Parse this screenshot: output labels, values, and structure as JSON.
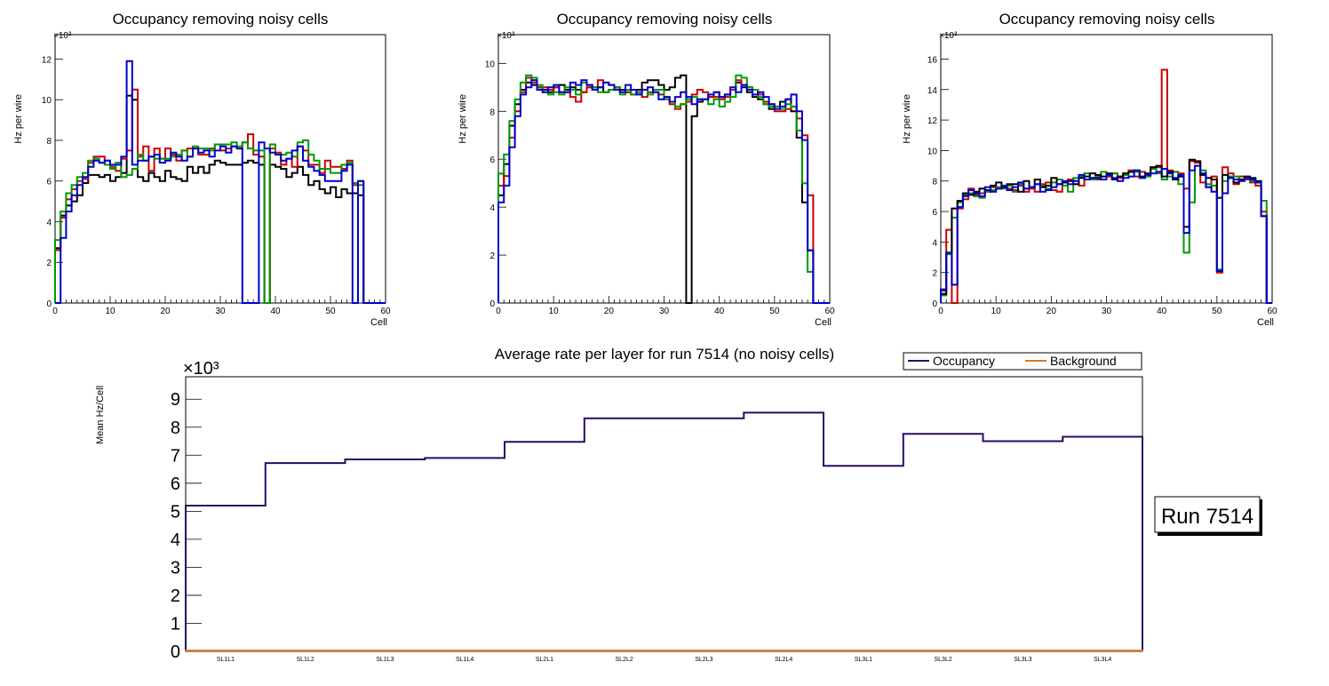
{
  "colors": {
    "red": "#cc0000",
    "green": "#009900",
    "black": "#000000",
    "blue": "#0000cc",
    "occupancy": "#2a0a66",
    "background": "#dd7722"
  },
  "chart_data": [
    {
      "type": "line",
      "title": "Occupancy removing noisy cells",
      "xlabel": "Cell",
      "ylabel": "Hz per wire",
      "exponent": "×10³",
      "xlim": [
        0,
        60
      ],
      "ylim": [
        0,
        13.2
      ],
      "xticks": [
        0,
        10,
        20,
        30,
        40,
        50,
        60
      ],
      "yticks": [
        0,
        2,
        4,
        6,
        8,
        10,
        12
      ],
      "series": [
        {
          "name": "black",
          "color": "black",
          "values": [
            2.7,
            4.3,
            4.8,
            5.0,
            5.3,
            5.9,
            6.3,
            6.3,
            6.2,
            6.3,
            6.0,
            6.2,
            6.4,
            10.2,
            10.0,
            6.2,
            6.0,
            6.4,
            6.2,
            6.0,
            6.5,
            6.2,
            6.1,
            6.0,
            6.7,
            6.4,
            6.7,
            6.4,
            6.8,
            7.0,
            6.9,
            6.8,
            6.8,
            6.8,
            6.9,
            7.0,
            6.9,
            6.8,
            0,
            6.8,
            6.7,
            6.6,
            6.2,
            6.4,
            6.7,
            6.3,
            5.8,
            6.0,
            5.6,
            5.4,
            5.7,
            5.2,
            5.6,
            5.4,
            5.4,
            5.3,
            0,
            0,
            0,
            0
          ]
        },
        {
          "name": "red",
          "color": "red",
          "values": [
            2.6,
            4.2,
            5.1,
            5.6,
            6.0,
            6.1,
            6.9,
            7.2,
            7.2,
            7.0,
            6.7,
            6.5,
            7.1,
            7.5,
            10.5,
            7.2,
            7.7,
            6.5,
            7.6,
            7.1,
            7.6,
            7.3,
            7.0,
            7.5,
            7.6,
            7.6,
            7.3,
            7.3,
            7.6,
            7.8,
            7.5,
            7.6,
            7.7,
            7.6,
            7.9,
            8.3,
            7.3,
            7.2,
            0,
            7.6,
            7.4,
            6.8,
            7.1,
            6.7,
            7.7,
            7.5,
            6.8,
            6.8,
            6.4,
            7.0,
            6.7,
            6.7,
            6.6,
            7.0,
            5.8,
            6.0,
            0,
            0,
            0,
            0
          ]
        },
        {
          "name": "green",
          "color": "green",
          "values": [
            3.1,
            4.5,
            5.4,
            5.8,
            6.2,
            6.4,
            7.0,
            7.1,
            6.9,
            6.8,
            6.6,
            6.9,
            6.2,
            6.3,
            6.6,
            7.3,
            7.0,
            7.2,
            7.1,
            7.1,
            7.1,
            7.2,
            7.3,
            7.5,
            7.2,
            7.7,
            7.6,
            7.6,
            7.5,
            7.8,
            7.8,
            7.8,
            7.9,
            7.7,
            7.9,
            7.6,
            7.5,
            7.5,
            0,
            7.8,
            7.3,
            7.3,
            7.4,
            7.2,
            7.9,
            8.0,
            7.3,
            7.0,
            6.6,
            6.6,
            6.4,
            6.4,
            6.8,
            6.9,
            5.9,
            5.8,
            0,
            0,
            0,
            0
          ]
        },
        {
          "name": "blue",
          "color": "blue",
          "values": [
            0,
            3.2,
            4.5,
            5.3,
            5.8,
            6.2,
            6.7,
            7.0,
            6.9,
            7.0,
            6.8,
            6.8,
            7.2,
            11.9,
            6.8,
            7.0,
            7.0,
            7.2,
            7.3,
            6.9,
            7.0,
            7.4,
            7.2,
            7.0,
            7.2,
            7.6,
            7.4,
            7.5,
            7.2,
            7.5,
            7.7,
            7.4,
            7.7,
            7.6,
            0,
            0,
            0,
            7.9,
            7.6,
            7.4,
            7.3,
            7.0,
            7.1,
            7.5,
            7.7,
            7.0,
            6.7,
            6.5,
            6.3,
            6.0,
            6.0,
            6.0,
            6.5,
            6.8,
            0,
            6.0,
            0,
            0,
            0,
            0
          ]
        }
      ]
    },
    {
      "type": "line",
      "title": "Occupancy removing noisy cells",
      "xlabel": "Cell",
      "ylabel": "Hz per wire",
      "exponent": "×10³",
      "xlim": [
        0,
        60
      ],
      "ylim": [
        0,
        11.2
      ],
      "xticks": [
        0,
        10,
        20,
        30,
        40,
        50,
        60
      ],
      "yticks": [
        0,
        2,
        4,
        6,
        8,
        10
      ],
      "series": [
        {
          "name": "black",
          "color": "black",
          "values": [
            4.5,
            5.8,
            7.4,
            8.3,
            8.9,
            9.2,
            9.1,
            9.0,
            8.9,
            8.8,
            9.0,
            9.1,
            8.9,
            9.0,
            8.9,
            8.8,
            9.0,
            9.0,
            9.0,
            8.8,
            8.9,
            9.0,
            8.9,
            8.8,
            8.9,
            8.9,
            9.2,
            9.3,
            9.3,
            9.1,
            8.9,
            9.0,
            9.4,
            9.5,
            0,
            7.8,
            8.4,
            8.5,
            8.6,
            8.8,
            8.6,
            8.7,
            8.9,
            9.2,
            9.0,
            8.8,
            8.6,
            8.5,
            8.3,
            8.1,
            8.2,
            8.4,
            8.5,
            8.0,
            6.9,
            4.2,
            2.2,
            0,
            0,
            0
          ]
        },
        {
          "name": "red",
          "color": "red",
          "values": [
            4.9,
            5.3,
            6.9,
            8.0,
            8.8,
            9.4,
            9.2,
            9.0,
            9.0,
            8.9,
            9.0,
            8.8,
            8.8,
            8.6,
            8.4,
            8.8,
            9.0,
            8.9,
            9.3,
            9.2,
            9.1,
            9.0,
            8.8,
            8.8,
            8.7,
            8.8,
            8.6,
            8.8,
            8.8,
            8.7,
            8.6,
            8.3,
            8.1,
            8.3,
            8.4,
            8.7,
            8.9,
            8.8,
            8.6,
            8.6,
            8.5,
            8.6,
            8.9,
            9.3,
            9.1,
            9.0,
            8.9,
            8.7,
            8.4,
            8.3,
            8.0,
            8.0,
            8.1,
            8.2,
            7.7,
            7.0,
            4.5,
            0,
            0,
            0
          ]
        },
        {
          "name": "green",
          "color": "green",
          "values": [
            5.4,
            6.2,
            7.6,
            8.5,
            9.2,
            9.5,
            9.4,
            9.1,
            8.8,
            8.7,
            8.8,
            8.7,
            9.0,
            8.9,
            8.7,
            9.2,
            9.1,
            9.0,
            8.8,
            8.8,
            8.9,
            9.0,
            8.7,
            8.9,
            8.7,
            8.8,
            8.9,
            8.7,
            8.9,
            8.9,
            8.5,
            8.4,
            8.2,
            8.3,
            8.5,
            8.6,
            8.5,
            8.5,
            8.3,
            8.5,
            8.2,
            8.4,
            8.6,
            9.5,
            9.4,
            9.0,
            8.9,
            8.6,
            8.3,
            8.2,
            8.2,
            8.1,
            8.3,
            8.2,
            7.2,
            5.0,
            1.3,
            0,
            0,
            0
          ]
        },
        {
          "name": "blue",
          "color": "blue",
          "values": [
            4.2,
            4.9,
            6.5,
            7.8,
            8.7,
            9.0,
            9.3,
            8.9,
            8.8,
            9.0,
            9.1,
            8.8,
            8.8,
            9.2,
            9.1,
            9.3,
            9.1,
            8.9,
            9.0,
            9.2,
            9.1,
            8.9,
            8.8,
            9.1,
            8.9,
            8.7,
            8.9,
            9.0,
            8.8,
            8.5,
            8.6,
            8.4,
            8.6,
            8.8,
            8.6,
            8.3,
            8.5,
            8.5,
            8.7,
            8.8,
            8.6,
            8.7,
            9.0,
            8.8,
            9.1,
            8.9,
            8.7,
            8.8,
            8.6,
            8.3,
            8.1,
            8.2,
            8.5,
            8.7,
            8.0,
            6.8,
            2.2,
            0,
            0,
            0
          ]
        }
      ]
    },
    {
      "type": "line",
      "title": "Occupancy removing noisy cells",
      "xlabel": "Cell",
      "ylabel": "Hz per wire",
      "exponent": "×10³",
      "xlim": [
        0,
        60
      ],
      "ylim": [
        0,
        17.6
      ],
      "xticks": [
        0,
        10,
        20,
        30,
        40,
        50,
        60
      ],
      "yticks": [
        0,
        2,
        4,
        6,
        8,
        10,
        12,
        14,
        16
      ],
      "series": [
        {
          "name": "red",
          "color": "red",
          "values": [
            0.8,
            4.8,
            0,
            6.2,
            6.8,
            7.5,
            7.1,
            7.2,
            7.3,
            7.6,
            7.5,
            7.6,
            7.5,
            7.4,
            7.7,
            7.3,
            7.5,
            7.3,
            7.8,
            7.9,
            7.4,
            7.3,
            7.9,
            8.1,
            8.0,
            7.7,
            8.1,
            8.2,
            8.1,
            8.1,
            8.3,
            8.5,
            8.2,
            8.5,
            8.7,
            8.3,
            8.6,
            8.4,
            8.9,
            8.9,
            15.3,
            8.7,
            8.6,
            8.5,
            7.5,
            9.3,
            9.2,
            7.9,
            7.6,
            8.3,
            2.0,
            8.9,
            8.5,
            7.8,
            8.3,
            8.1,
            7.9,
            7.7,
            6.0,
            0
          ]
        },
        {
          "name": "green",
          "color": "green",
          "values": [
            0.5,
            3.2,
            5.6,
            6.6,
            7.1,
            7.2,
            7.0,
            6.9,
            7.3,
            7.4,
            7.6,
            7.5,
            7.7,
            7.3,
            7.8,
            7.5,
            7.6,
            7.8,
            7.7,
            7.5,
            7.9,
            8.1,
            7.7,
            7.3,
            8.2,
            8.3,
            8.5,
            8.1,
            8.3,
            8.6,
            8.5,
            8.5,
            8.3,
            8.4,
            8.6,
            8.6,
            8.2,
            8.3,
            8.8,
            8.5,
            8.1,
            8.3,
            8.6,
            7.8,
            3.3,
            6.6,
            9.0,
            8.7,
            7.8,
            7.7,
            2.2,
            8.0,
            8.3,
            8.3,
            8.1,
            8.2,
            8.0,
            7.9,
            6.7,
            0
          ]
        },
        {
          "name": "black",
          "color": "black",
          "values": [
            0.6,
            3.3,
            6.2,
            6.7,
            7.2,
            7.1,
            7.3,
            7.5,
            7.4,
            7.7,
            7.9,
            7.6,
            7.8,
            7.8,
            7.3,
            8.0,
            7.6,
            8.1,
            7.6,
            7.7,
            8.2,
            7.8,
            7.9,
            8.0,
            7.8,
            8.2,
            8.3,
            8.5,
            8.4,
            8.3,
            8.5,
            8.1,
            8.3,
            8.5,
            8.6,
            8.7,
            8.3,
            8.5,
            8.9,
            9.0,
            8.3,
            8.6,
            8.1,
            8.3,
            5.0,
            9.4,
            9.3,
            8.4,
            8.2,
            8.1,
            6.9,
            8.4,
            8.2,
            7.9,
            8.1,
            8.3,
            8.2,
            8.0,
            5.7,
            0
          ]
        },
        {
          "name": "blue",
          "color": "blue",
          "values": [
            0.9,
            3.3,
            1.2,
            6.3,
            7.0,
            7.4,
            7.2,
            7.0,
            7.6,
            7.3,
            7.5,
            7.7,
            7.4,
            7.6,
            7.9,
            7.5,
            7.6,
            7.8,
            7.3,
            7.4,
            7.6,
            7.8,
            8.0,
            7.8,
            8.0,
            8.4,
            8.1,
            8.2,
            8.2,
            8.1,
            8.4,
            8.2,
            8.0,
            8.2,
            8.3,
            8.7,
            8.2,
            8.4,
            8.5,
            8.6,
            8.8,
            8.5,
            8.2,
            8.4,
            4.6,
            8.7,
            9.0,
            8.5,
            7.6,
            7.3,
            2.1,
            7.2,
            8.2,
            8.1,
            8.0,
            8.2,
            8.1,
            7.9,
            5.7,
            0
          ]
        }
      ]
    },
    {
      "type": "line",
      "title": "Average rate per layer for run 7514 (no noisy cells)",
      "xlabel": "",
      "ylabel": "Mean Hz/Cell",
      "exponent": "×10³",
      "ylim": [
        0,
        9.8
      ],
      "yticks": [
        0,
        1,
        2,
        3,
        4,
        5,
        6,
        7,
        8,
        9
      ],
      "categories": [
        "SL1L1",
        "SL1L2",
        "SL1L3",
        "SL1L4",
        "SL2L1",
        "SL2L2",
        "SL2L3",
        "SL2L4",
        "SL3L1",
        "SL3L2",
        "SL3L3",
        "SL3L4"
      ],
      "series": [
        {
          "name": "Occupancy",
          "color": "occupancy",
          "values": [
            5.2,
            6.72,
            6.85,
            6.9,
            7.48,
            8.32,
            8.32,
            8.52,
            6.62,
            7.76,
            7.5,
            7.66
          ]
        },
        {
          "name": "Background",
          "color": "background",
          "values": [
            0.03,
            0.03,
            0.03,
            0.03,
            0.03,
            0.03,
            0.03,
            0.03,
            0.03,
            0.03,
            0.03,
            0.03
          ]
        }
      ],
      "legend": {
        "placement": "top-right"
      },
      "run_label": "Run 7514"
    }
  ]
}
